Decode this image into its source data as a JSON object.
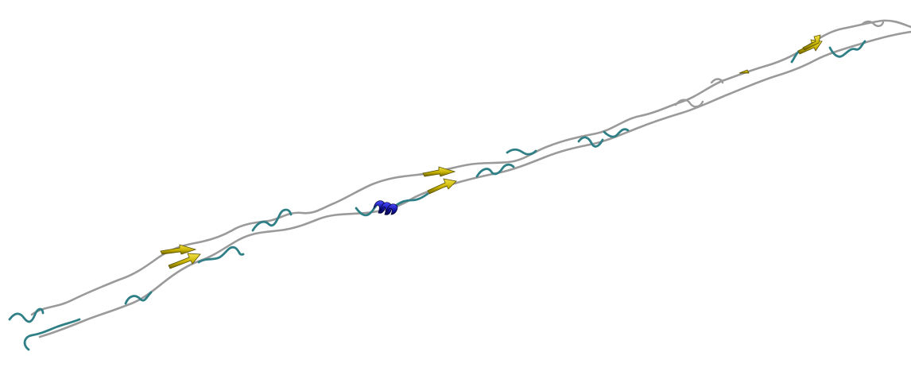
{
  "scene": {
    "kind": "protein-ribbon-render",
    "background_color": "#ffffff",
    "colors": {
      "coil": "#9a9a9a",
      "turn": "#2f7f86",
      "strand": "#c8b400",
      "helix": "#1414a8"
    }
  }
}
